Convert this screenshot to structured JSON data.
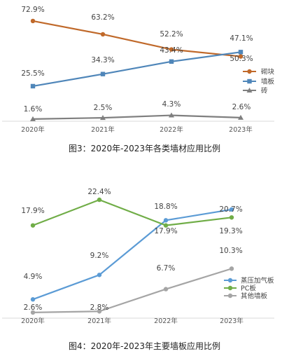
{
  "chart_data": [
    {
      "type": "line",
      "title": "",
      "caption": "图3：2020年-2023年各类墙材应用比例",
      "categories": [
        "2020年",
        "2021年",
        "2022年",
        "2023年"
      ],
      "ylim": [
        0,
        80
      ],
      "grid": false,
      "legend_position": "right",
      "series": [
        {
          "name": "砌块",
          "marker": "circle",
          "color": "#c0692a",
          "values": [
            72.9,
            63.2,
            52.2,
            47.1
          ],
          "labels": [
            "72.9%",
            "63.2%",
            "52.2%",
            "47.1%"
          ]
        },
        {
          "name": "墙板",
          "marker": "square",
          "color": "#4f86b9",
          "values": [
            25.5,
            34.3,
            43.4,
            50.3
          ],
          "labels": [
            "25.5%",
            "34.3%",
            "43.4%",
            "50.3%"
          ]
        },
        {
          "name": "砖",
          "marker": "triangle",
          "color": "#7f7f7f",
          "values": [
            1.6,
            2.5,
            4.3,
            2.6
          ],
          "labels": [
            "1.6%",
            "2.5%",
            "4.3%",
            "2.6%"
          ]
        }
      ]
    },
    {
      "type": "line",
      "title": "",
      "caption": "图4：2020年-2023年主要墙板应用比例",
      "categories": [
        "2020年",
        "2021年",
        "2022年",
        "2023年"
      ],
      "ylim": [
        0,
        25
      ],
      "grid": false,
      "legend_position": "right",
      "series": [
        {
          "name": "蒸压加气板",
          "marker": "circle",
          "color": "#5b9bd5",
          "values": [
            4.9,
            9.2,
            18.8,
            20.7
          ],
          "labels": [
            "4.9%",
            "9.2%",
            "18.8%",
            "20.7%"
          ]
        },
        {
          "name": "PC板",
          "marker": "circle",
          "color": "#70ad47",
          "values": [
            17.9,
            22.4,
            17.9,
            19.3
          ],
          "labels": [
            "17.9%",
            "22.4%",
            "17.9%",
            "19.3%"
          ]
        },
        {
          "name": "其他墙板",
          "marker": "circle",
          "color": "#a5a5a5",
          "values": [
            2.6,
            2.8,
            6.7,
            10.3
          ],
          "labels": [
            "2.6%",
            "2.8%",
            "6.7%",
            "10.3%"
          ]
        }
      ]
    }
  ]
}
